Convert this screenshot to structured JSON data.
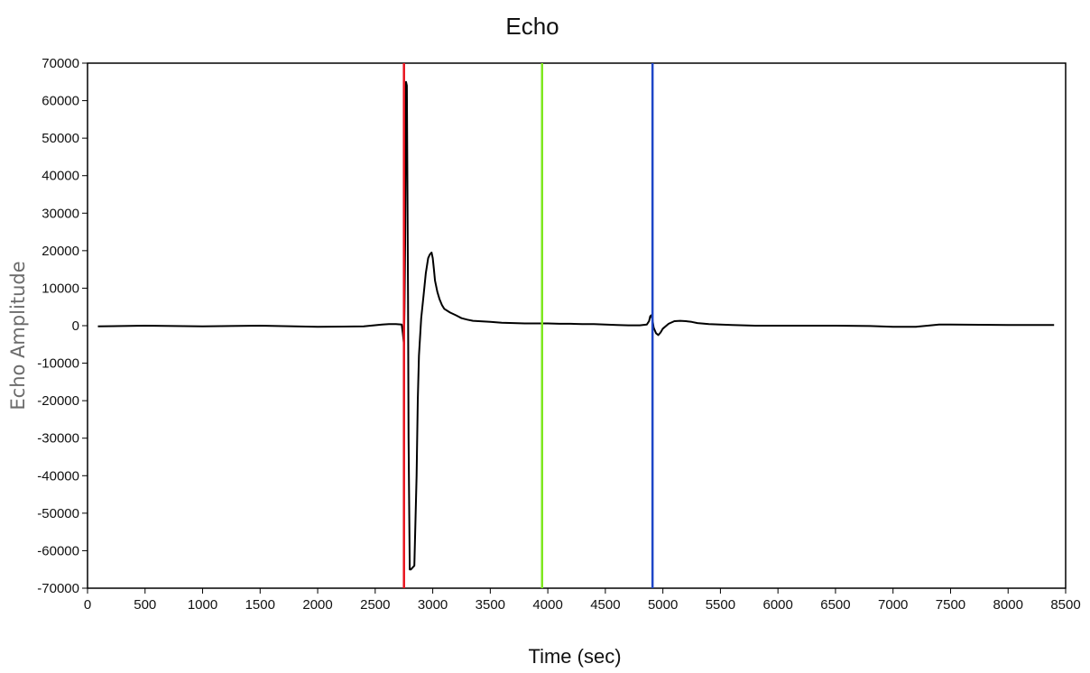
{
  "chart_data": {
    "type": "line",
    "title": "Echo",
    "xlabel": "Time (sec)",
    "ylabel": "Echo Amplitude",
    "xlim": [
      0,
      8500
    ],
    "ylim": [
      -70000,
      70000
    ],
    "xticks": [
      0,
      500,
      1000,
      1500,
      2000,
      2500,
      3000,
      3500,
      4000,
      4500,
      5000,
      5500,
      6000,
      6500,
      7000,
      7500,
      8000,
      8500
    ],
    "yticks": [
      70000,
      60000,
      50000,
      40000,
      30000,
      20000,
      10000,
      0,
      -10000,
      -20000,
      -30000,
      -40000,
      -50000,
      -60000,
      -70000
    ],
    "xtick_labels": [
      "0",
      "500",
      "1000",
      "1500",
      "2000",
      "2500",
      "3000",
      "3500",
      "4000",
      "4500",
      "5000",
      "5500",
      "6000",
      "6500",
      "7000",
      "7500",
      "8000",
      "8500"
    ],
    "ytick_labels": [
      "70000",
      "60000",
      "50000",
      "40000",
      "30000",
      "20000",
      "10000",
      "0",
      "-10000",
      "-20000",
      "-30000",
      "-40000",
      "-50000",
      "-60000",
      "-70000"
    ],
    "grid": false,
    "series": [
      {
        "color": "#000000",
        "x": [
          90,
          500,
          1000,
          1500,
          2000,
          2400,
          2560,
          2620,
          2680,
          2730,
          2740,
          2750,
          2755,
          2760,
          2768,
          2775,
          2785,
          2790,
          2800,
          2810,
          2840,
          2860,
          2870,
          2880,
          2900,
          2920,
          2940,
          2960,
          2975,
          2990,
          3000,
          3010,
          3020,
          3040,
          3060,
          3080,
          3100,
          3150,
          3200,
          3250,
          3300,
          3350,
          3400,
          3450,
          3500,
          3550,
          3600,
          3700,
          3800,
          3900,
          4000,
          4100,
          4200,
          4300,
          4400,
          4500,
          4600,
          4700,
          4800,
          4860,
          4880,
          4890,
          4900,
          4910,
          4920,
          4940,
          4960,
          4980,
          5000,
          5050,
          5100,
          5150,
          5200,
          5250,
          5300,
          5400,
          5600,
          5800,
          6000,
          6500,
          6800,
          7000,
          7200,
          7300,
          7400,
          7500,
          8000,
          8400
        ],
        "y": [
          -200,
          0,
          -200,
          0,
          -300,
          -200,
          300,
          400,
          400,
          300,
          -2000,
          -5000,
          5000,
          22000,
          65000,
          64000,
          8000,
          -30000,
          -65000,
          -65000,
          -64000,
          -40000,
          -20000,
          -8000,
          2000,
          8000,
          14000,
          18000,
          19000,
          19500,
          18000,
          15000,
          12000,
          9000,
          7000,
          5500,
          4500,
          3500,
          2800,
          2000,
          1600,
          1300,
          1200,
          1100,
          1000,
          900,
          800,
          700,
          600,
          600,
          600,
          500,
          500,
          400,
          400,
          300,
          200,
          100,
          100,
          300,
          1200,
          2500,
          2800,
          1500,
          -500,
          -2000,
          -2500,
          -1800,
          -800,
          500,
          1200,
          1300,
          1200,
          1000,
          700,
          400,
          200,
          0,
          0,
          0,
          -100,
          -300,
          -300,
          0,
          300,
          300,
          200,
          200
        ]
      }
    ],
    "vlines": [
      {
        "x": 2750,
        "color": "#e8141e"
      },
      {
        "x": 3950,
        "color": "#7ee81e"
      },
      {
        "x": 4910,
        "color": "#1e46c8"
      }
    ]
  }
}
